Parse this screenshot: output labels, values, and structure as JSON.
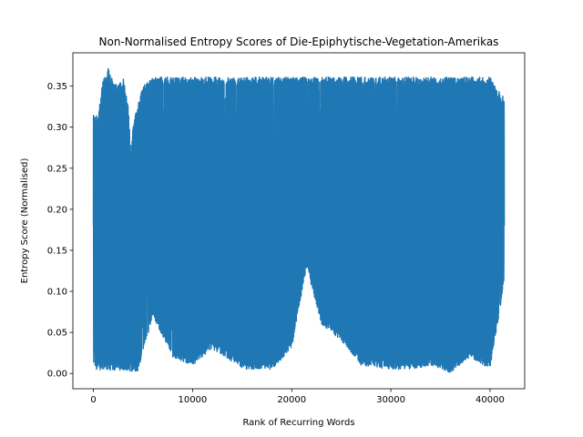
{
  "chart_data": {
    "type": "line",
    "title": "Non-Normalised Entropy Scores of Die-Epiphytische-Vegetation-Amerikas",
    "xlabel": "Rank of Recurring Words",
    "ylabel": "Entropy Score (Normalised)",
    "xlim": [
      -2072,
      43500
    ],
    "ylim": [
      -0.0186,
      0.3906
    ],
    "xticks": [
      0,
      10000,
      20000,
      30000,
      40000
    ],
    "xtick_labels": [
      "0",
      "10000",
      "20000",
      "30000",
      "40000"
    ],
    "yticks": [
      0.0,
      0.05,
      0.1,
      0.15,
      0.2,
      0.25,
      0.3,
      0.35
    ],
    "ytick_labels": [
      "0.00",
      "0.05",
      "0.10",
      "0.15",
      "0.20",
      "0.25",
      "0.30",
      "0.35"
    ],
    "grid": false,
    "series": [
      {
        "color": "#1f77b4",
        "x_range": [
          0,
          41440
        ],
        "value_range": [
          0.0,
          0.372
        ],
        "typical_range": [
          0.005,
          0.361
        ],
        "upper_envelope": [
          {
            "x": 0,
            "y": 0.315
          },
          {
            "x": 500,
            "y": 0.315
          },
          {
            "x": 1000,
            "y": 0.361
          },
          {
            "x": 1500,
            "y": 0.372
          },
          {
            "x": 2000,
            "y": 0.355
          },
          {
            "x": 2500,
            "y": 0.35
          },
          {
            "x": 3000,
            "y": 0.36
          },
          {
            "x": 3500,
            "y": 0.33
          },
          {
            "x": 3800,
            "y": 0.262
          },
          {
            "x": 4000,
            "y": 0.305
          },
          {
            "x": 5000,
            "y": 0.35
          },
          {
            "x": 6000,
            "y": 0.361
          },
          {
            "x": 10000,
            "y": 0.361
          },
          {
            "x": 15000,
            "y": 0.361
          },
          {
            "x": 20000,
            "y": 0.361
          },
          {
            "x": 25000,
            "y": 0.361
          },
          {
            "x": 30000,
            "y": 0.361
          },
          {
            "x": 35000,
            "y": 0.361
          },
          {
            "x": 40000,
            "y": 0.361
          },
          {
            "x": 41440,
            "y": 0.335
          }
        ],
        "lower_envelope": [
          {
            "x": 0,
            "y": 0.005
          },
          {
            "x": 2000,
            "y": 0.004
          },
          {
            "x": 3500,
            "y": 0.002
          },
          {
            "x": 4500,
            "y": 0.003
          },
          {
            "x": 6000,
            "y": 0.07
          },
          {
            "x": 8000,
            "y": 0.02
          },
          {
            "x": 10000,
            "y": 0.01
          },
          {
            "x": 12000,
            "y": 0.03
          },
          {
            "x": 15000,
            "y": 0.005
          },
          {
            "x": 18000,
            "y": 0.005
          },
          {
            "x": 20000,
            "y": 0.03
          },
          {
            "x": 21500,
            "y": 0.13
          },
          {
            "x": 23000,
            "y": 0.06
          },
          {
            "x": 25000,
            "y": 0.04
          },
          {
            "x": 27000,
            "y": 0.01
          },
          {
            "x": 30000,
            "y": 0.005
          },
          {
            "x": 32000,
            "y": 0.005
          },
          {
            "x": 34000,
            "y": 0.01
          },
          {
            "x": 36000,
            "y": 0.001
          },
          {
            "x": 38000,
            "y": 0.02
          },
          {
            "x": 40000,
            "y": 0.005
          },
          {
            "x": 41440,
            "y": 0.11
          }
        ]
      }
    ]
  }
}
